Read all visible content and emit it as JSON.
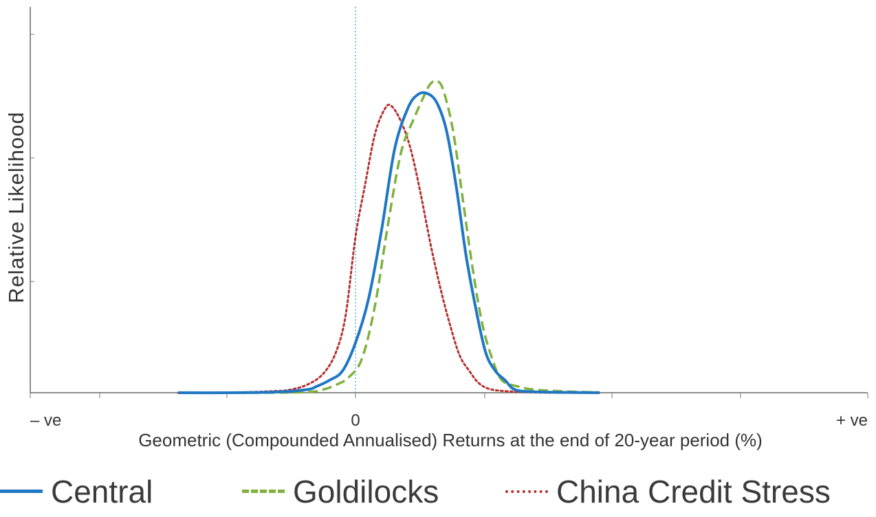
{
  "chart_data": {
    "type": "line",
    "ylabel": "Relative Likelihood",
    "xlabel": "Geometric (Compounded Annualised) Returns at the end of 20-year period (%)",
    "x_ticks": [
      "– ve",
      "0",
      "+ ve"
    ],
    "x_domain": [
      -1,
      1
    ],
    "y_domain": [
      0,
      1.05
    ],
    "zero_line": true,
    "legend_position": "bottom",
    "series": [
      {
        "name": "Central",
        "color": "#1f77c4",
        "style": "solid",
        "peak": 0.96,
        "points": [
          [
            -0.545,
            0.0
          ],
          [
            -0.4,
            0.0
          ],
          [
            -0.25,
            0.002
          ],
          [
            -0.15,
            0.01
          ],
          [
            -0.12,
            0.02
          ],
          [
            -0.08,
            0.04
          ],
          [
            -0.04,
            0.07
          ],
          [
            0.0,
            0.16
          ],
          [
            0.04,
            0.3
          ],
          [
            0.08,
            0.52
          ],
          [
            0.12,
            0.78
          ],
          [
            0.16,
            0.91
          ],
          [
            0.19,
            0.955
          ],
          [
            0.22,
            0.96
          ],
          [
            0.25,
            0.93
          ],
          [
            0.28,
            0.84
          ],
          [
            0.31,
            0.66
          ],
          [
            0.34,
            0.44
          ],
          [
            0.37,
            0.27
          ],
          [
            0.4,
            0.13
          ],
          [
            0.43,
            0.07
          ],
          [
            0.46,
            0.04
          ],
          [
            0.49,
            0.01
          ],
          [
            0.55,
            0.003
          ],
          [
            0.65,
            0.001
          ],
          [
            0.75,
            0.0
          ]
        ]
      },
      {
        "name": "Goldilocks",
        "color": "#7fb13d",
        "style": "dashed",
        "peak": 1.0,
        "points": [
          [
            -0.545,
            0.0
          ],
          [
            -0.3,
            0.0
          ],
          [
            -0.15,
            0.002
          ],
          [
            -0.1,
            0.01
          ],
          [
            -0.06,
            0.025
          ],
          [
            -0.02,
            0.05
          ],
          [
            0.02,
            0.11
          ],
          [
            0.06,
            0.28
          ],
          [
            0.1,
            0.54
          ],
          [
            0.14,
            0.77
          ],
          [
            0.18,
            0.88
          ],
          [
            0.21,
            0.95
          ],
          [
            0.23,
            0.99
          ],
          [
            0.25,
            1.0
          ],
          [
            0.27,
            0.97
          ],
          [
            0.3,
            0.84
          ],
          [
            0.33,
            0.62
          ],
          [
            0.36,
            0.4
          ],
          [
            0.39,
            0.22
          ],
          [
            0.42,
            0.11
          ],
          [
            0.45,
            0.04
          ],
          [
            0.5,
            0.02
          ],
          [
            0.55,
            0.01
          ],
          [
            0.65,
            0.004
          ],
          [
            0.75,
            0.001
          ]
        ]
      },
      {
        "name": "China Credit Stress",
        "color": "#b5302f",
        "style": "dotted",
        "peak": 0.92,
        "points": [
          [
            -0.545,
            0.0
          ],
          [
            -0.4,
            0.0
          ],
          [
            -0.25,
            0.005
          ],
          [
            -0.2,
            0.01
          ],
          [
            -0.15,
            0.025
          ],
          [
            -0.1,
            0.06
          ],
          [
            -0.06,
            0.13
          ],
          [
            -0.03,
            0.25
          ],
          [
            0.0,
            0.5
          ],
          [
            0.03,
            0.67
          ],
          [
            0.06,
            0.83
          ],
          [
            0.09,
            0.91
          ],
          [
            0.11,
            0.92
          ],
          [
            0.14,
            0.87
          ],
          [
            0.17,
            0.78
          ],
          [
            0.2,
            0.64
          ],
          [
            0.23,
            0.48
          ],
          [
            0.26,
            0.34
          ],
          [
            0.29,
            0.22
          ],
          [
            0.32,
            0.12
          ],
          [
            0.35,
            0.07
          ],
          [
            0.38,
            0.03
          ],
          [
            0.42,
            0.01
          ],
          [
            0.5,
            0.003
          ],
          [
            0.6,
            0.0
          ],
          [
            0.75,
            0.0
          ]
        ]
      }
    ]
  }
}
